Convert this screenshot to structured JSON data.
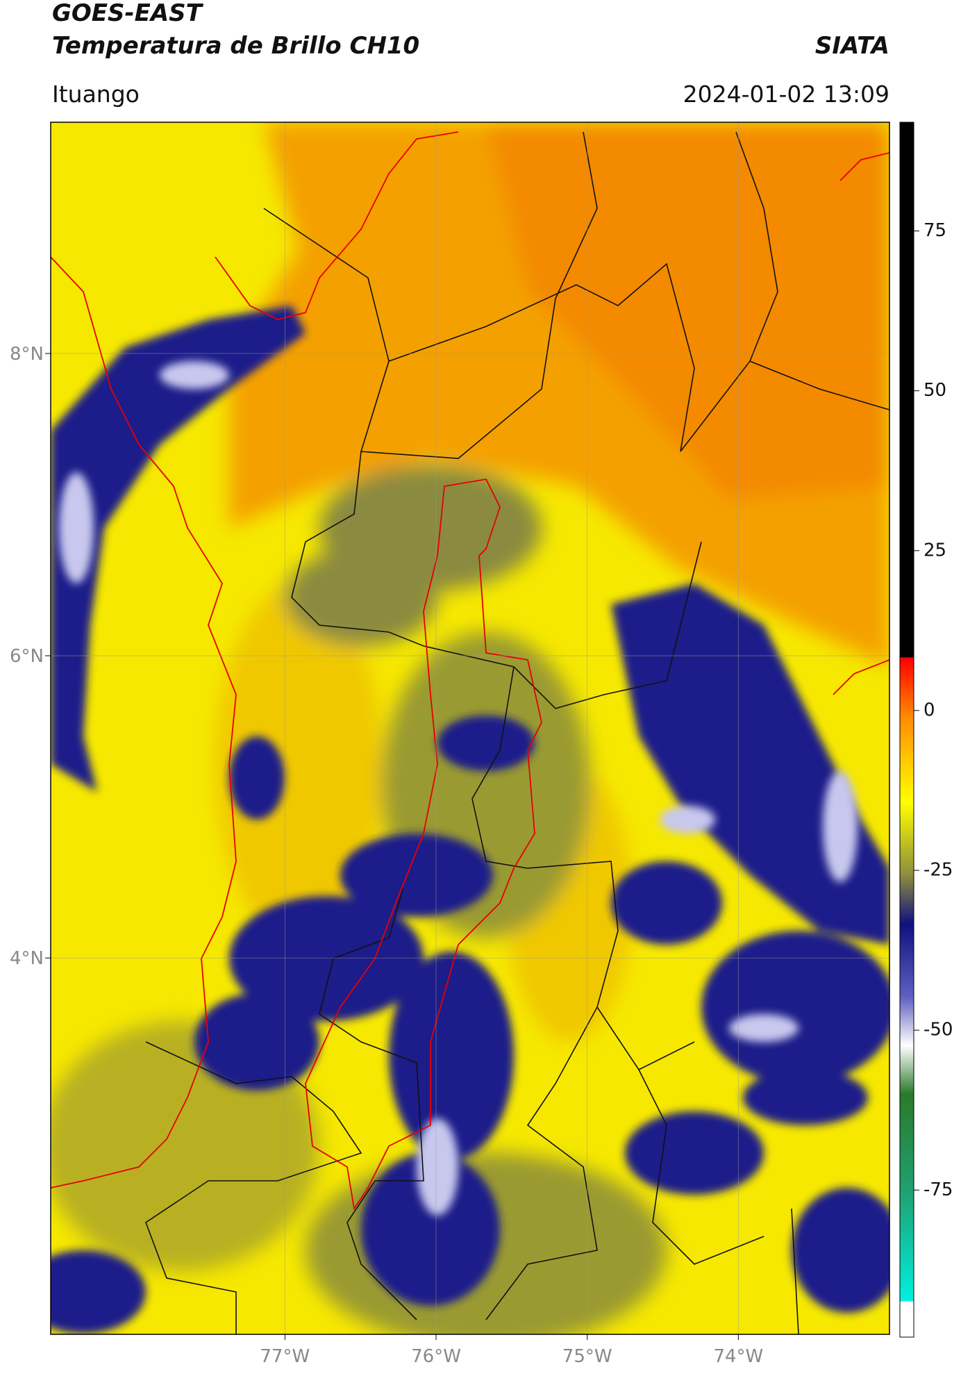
{
  "header": {
    "satellite": "GOES-EAST",
    "product": "Temperatura de Brillo CH10",
    "institution": "SIATA",
    "region": "Ituango",
    "datetime": "2024-01-02 13:09"
  },
  "map": {
    "lon_lim": [
      -78.55,
      -73.0
    ],
    "lat_lim": [
      1.51,
      9.53
    ],
    "lon_ticks": [
      {
        "value": -77,
        "label": "77°W"
      },
      {
        "value": -76,
        "label": "76°W"
      },
      {
        "value": -75,
        "label": "75°W"
      },
      {
        "value": -74,
        "label": "74°W"
      }
    ],
    "lat_ticks": [
      {
        "value": 8,
        "label": "8°N"
      },
      {
        "value": 6,
        "label": "6°N"
      },
      {
        "value": 4,
        "label": "4°N"
      }
    ],
    "grid": true
  },
  "colorbar": {
    "lim": [
      -98,
      92
    ],
    "ticks": [
      75,
      50,
      25,
      0,
      -25,
      -50,
      -75
    ]
  }
}
